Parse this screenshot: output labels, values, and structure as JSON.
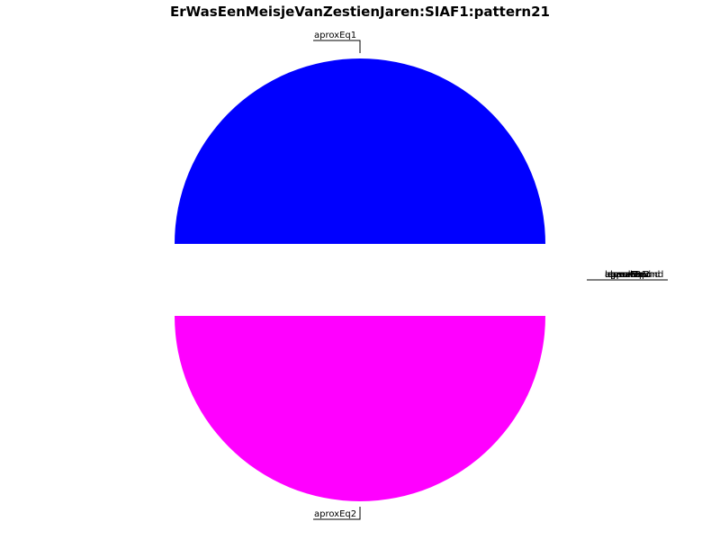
{
  "chart_data": {
    "type": "pie",
    "title": "ErWasEenMeisjeVanZestienJaren:SIAF1:pattern21",
    "series": [
      {
        "slices": [
          {
            "label": "aproxEq1",
            "value": 50,
            "color": "#0000ff"
          },
          {
            "label": "aproxEq2",
            "value": 50,
            "color": "#ff00ff"
          }
        ]
      }
    ],
    "overlapping_labels": [
      "aproxEq1",
      "aproxEq2",
      "lowerBound",
      "upperBound",
      "equal",
      "greater",
      "lesser",
      "unrelated"
    ]
  }
}
